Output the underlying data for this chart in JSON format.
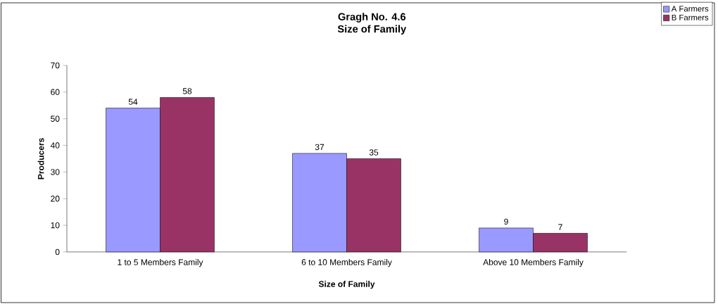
{
  "chart_data": {
    "type": "bar",
    "title": "Gragh No. 4.6",
    "subtitle": "Size of Family",
    "xlabel": "Size of Family",
    "ylabel": "Producers",
    "categories": [
      "1 to 5 Members Family",
      "6 to 10 Members Family",
      "Above 10 Members Family"
    ],
    "series": [
      {
        "name": "A Farmers",
        "color": "#9999ff",
        "values": [
          54,
          37,
          9
        ]
      },
      {
        "name": "B Farmers",
        "color": "#993366",
        "values": [
          58,
          35,
          7
        ]
      }
    ],
    "ylim": [
      0,
      70
    ],
    "yticks": [
      0,
      10,
      20,
      30,
      40,
      50,
      60,
      70
    ],
    "data_labels": true,
    "legend": "top right",
    "grid": false
  }
}
